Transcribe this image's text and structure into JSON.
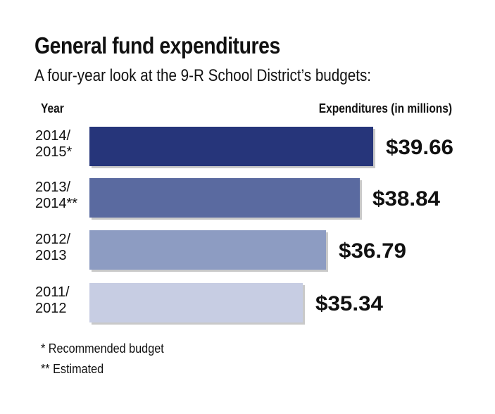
{
  "title": "General fund expenditures",
  "subtitle": "A four-year look at the 9-R School District’s budgets:",
  "column_headers": {
    "year": "Year",
    "expenditures": "Expenditures (in millions)"
  },
  "footnotes": [
    "* Recommended budget",
    "** Estimated"
  ],
  "colors": {
    "bars": [
      "#26357a",
      "#5a6aa0",
      "#8d9cc2",
      "#c7cde3"
    ],
    "shadow": "#c9c9c9",
    "text": "#111111"
  },
  "chart_data": {
    "type": "bar",
    "orientation": "horizontal",
    "title": "General fund expenditures",
    "subtitle": "A four-year look at the 9-R School District’s budgets:",
    "xlabel": "Expenditures (in millions)",
    "ylabel": "Year",
    "categories": [
      [
        "2014/",
        "2015*"
      ],
      [
        "2013/",
        "2014**"
      ],
      [
        "2012/",
        "2013"
      ],
      [
        "2011/",
        "2012"
      ]
    ],
    "values": [
      39.66,
      38.84,
      36.79,
      35.34
    ],
    "value_labels": [
      "$39.66",
      "$38.84",
      "$36.79",
      "$35.34"
    ],
    "grid": false,
    "legend": "none"
  }
}
